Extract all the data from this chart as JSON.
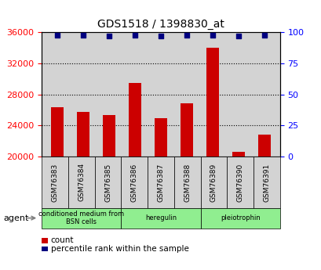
{
  "title": "GDS1518 / 1398830_at",
  "samples": [
    "GSM76383",
    "GSM76384",
    "GSM76385",
    "GSM76386",
    "GSM76387",
    "GSM76388",
    "GSM76389",
    "GSM76390",
    "GSM76391"
  ],
  "counts": [
    26400,
    25800,
    25400,
    29500,
    25000,
    26900,
    34000,
    20600,
    22800
  ],
  "percentile_ranks": [
    98,
    98,
    97,
    98,
    97,
    98,
    98,
    97,
    98
  ],
  "ylim_left": [
    20000,
    36000
  ],
  "ylim_right": [
    0,
    100
  ],
  "yticks_left": [
    20000,
    24000,
    28000,
    32000,
    36000
  ],
  "yticks_right": [
    0,
    25,
    50,
    75,
    100
  ],
  "bar_color": "#cc0000",
  "dot_color": "#000080",
  "grid_color": "#000000",
  "bg_color": "#d3d3d3",
  "groups": [
    {
      "label": "conditioned medium from\nBSN cells",
      "start": 0,
      "end": 3,
      "color": "#90ee90"
    },
    {
      "label": "heregulin",
      "start": 3,
      "end": 6,
      "color": "#90ee90"
    },
    {
      "label": "pleiotrophin",
      "start": 6,
      "end": 9,
      "color": "#90ee90"
    }
  ],
  "legend_count_label": "count",
  "legend_pct_label": "percentile rank within the sample",
  "agent_label": "agent"
}
